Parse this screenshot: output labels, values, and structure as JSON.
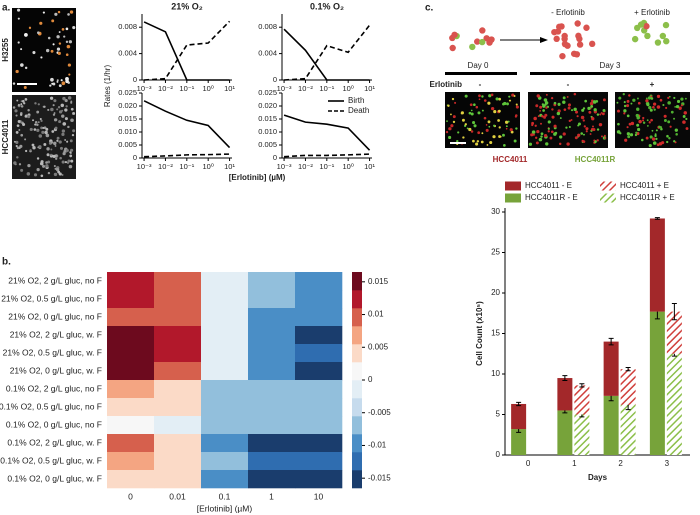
{
  "panel_labels": [
    "a.",
    "b.",
    "c."
  ],
  "panel_a": {
    "row_labels": [
      "H3255",
      "HCC4011"
    ],
    "ylabel": "Rates (1/hr)",
    "xlabel": "[Erlotinib] (µM)"
  },
  "schematic": {
    "day0": "Day 0",
    "day3": "Day 3",
    "minus_label": "- Erlotinib",
    "plus_label": "+ Erlotinib",
    "treatment": "Erlotinib",
    "signs": [
      "-",
      "-",
      "+"
    ],
    "cell_lines": [
      {
        "name": "HCC4011",
        "color": "#a3282a"
      },
      {
        "name": "HCC4011R",
        "color": "#77a33a"
      }
    ]
  },
  "chart_data": [
    {
      "type": "line",
      "title": "21% O₂",
      "xlog": true,
      "x": [
        0.001,
        0.01,
        0.1,
        1,
        10
      ],
      "xlim": [
        0.0008,
        13
      ],
      "xticks": [
        {
          "value": 0.001,
          "label": "10⁻³"
        },
        {
          "value": 0.01,
          "label": "10⁻²"
        },
        {
          "value": 0.1,
          "label": "10⁻¹"
        },
        {
          "value": 1,
          "label": "10⁰"
        },
        {
          "value": 10,
          "label": "10¹"
        }
      ],
      "ylim": [
        0,
        0.01
      ],
      "yticks": [
        0,
        0.004,
        0.008
      ],
      "series": [
        {
          "color": "#000000",
          "dash": false,
          "values": [
            0.0088,
            0.0073,
            0.0,
            0.0,
            0.0
          ]
        },
        {
          "color": "#000000",
          "dash": true,
          "values": [
            0.0,
            0.0002,
            0.0053,
            0.0056,
            0.0089
          ]
        }
      ]
    },
    {
      "type": "line",
      "title": "0.1% O₂",
      "xlog": true,
      "x": [
        0.001,
        0.01,
        0.1,
        1,
        10
      ],
      "xlim": [
        0.0008,
        13
      ],
      "xticks": [
        {
          "value": 0.001,
          "label": "10⁻³"
        },
        {
          "value": 0.01,
          "label": "10⁻²"
        },
        {
          "value": 0.1,
          "label": "10⁻¹"
        },
        {
          "value": 1,
          "label": "10⁰"
        },
        {
          "value": 10,
          "label": "10¹"
        }
      ],
      "ylim": [
        0,
        0.01
      ],
      "yticks": [
        0,
        0.004,
        0.008
      ],
      "series": [
        {
          "color": "#000000",
          "dash": false,
          "values": [
            0.0077,
            0.0045,
            0.0,
            0.0,
            0.0
          ]
        },
        {
          "color": "#000000",
          "dash": true,
          "values": [
            0.0,
            0.0002,
            0.0052,
            0.0042,
            0.0083
          ]
        }
      ]
    },
    {
      "type": "line",
      "xlog": true,
      "x": [
        0.001,
        0.01,
        0.1,
        1,
        10
      ],
      "xlim": [
        0.0008,
        13
      ],
      "xticks": [
        {
          "value": 0.001,
          "label": "10⁻³"
        },
        {
          "value": 0.01,
          "label": "10⁻²"
        },
        {
          "value": 0.1,
          "label": "10⁻¹"
        },
        {
          "value": 1,
          "label": "10⁰"
        },
        {
          "value": 10,
          "label": "10¹"
        }
      ],
      "ylim": [
        0,
        0.025
      ],
      "yticks": [
        0,
        0.005,
        {
          "value": 0.01,
          "label": "0.010"
        },
        0.015,
        {
          "value": 0.02,
          "label": "0.020"
        },
        0.025
      ],
      "series": [
        {
          "color": "#000000",
          "dash": false,
          "values": [
            0.022,
            0.018,
            0.0145,
            0.0125,
            0.004
          ]
        },
        {
          "color": "#000000",
          "dash": true,
          "values": [
            0.0005,
            0.0008,
            0.0012,
            0.0013,
            0.0015
          ]
        }
      ]
    },
    {
      "type": "line",
      "xlog": true,
      "x": [
        0.001,
        0.01,
        0.1,
        1,
        10
      ],
      "xlim": [
        0.0008,
        13
      ],
      "xticks": [
        {
          "value": 0.001,
          "label": "10⁻³"
        },
        {
          "value": 0.01,
          "label": "10⁻²"
        },
        {
          "value": 0.1,
          "label": "10⁻¹"
        },
        {
          "value": 1,
          "label": "10⁰"
        },
        {
          "value": 10,
          "label": "10¹"
        }
      ],
      "ylim": [
        0,
        0.025
      ],
      "yticks": [
        0,
        0.005,
        {
          "value": 0.01,
          "label": "0.010"
        },
        0.015,
        {
          "value": 0.02,
          "label": "0.020"
        },
        0.025
      ],
      "legend": "upper right",
      "series": [
        {
          "name": "Birth",
          "color": "#000000",
          "dash": false,
          "values": [
            0.0165,
            0.0138,
            0.013,
            0.0115,
            0.003
          ]
        },
        {
          "name": "Death",
          "color": "#000000",
          "dash": true,
          "values": [
            0.0005,
            0.001,
            0.001,
            0.0012,
            0.0015
          ]
        }
      ]
    },
    {
      "type": "heatmap",
      "xlabel": "[Erlotinib] (µM)",
      "categories": [
        "0",
        "0.01",
        "0.1",
        "1",
        "10"
      ],
      "rows": [
        "21% O2, 2 g/L gluc, no F",
        "21% O2, 0.5 g/L gluc, no F",
        "21% O2, 0 g/L gluc, no F",
        "21% O2, 2 g/L gluc, w. F",
        "21% O2, 0.5 g/L gluc, w. F",
        "21% O2, 0 g/L gluc, w. F",
        "0.1% O2, 2 g/L gluc, no F",
        "0.1% O2, 0.5 g/L gluc, no F",
        "0.1% O2, 0 g/L gluc, no F",
        "0.1% O2, 2 g/L gluc, w. F",
        "0.1% O2, 0.5 g/L gluc, w. F",
        "0.1% O2, 0 g/L gluc, w. F"
      ],
      "values": [
        [
          0.0115,
          0.0085,
          -0.002,
          -0.007,
          -0.009
        ],
        [
          0.0115,
          0.0085,
          -0.002,
          -0.007,
          -0.009
        ],
        [
          0.009,
          0.009,
          -0.002,
          -0.009,
          -0.009
        ],
        [
          0.016,
          0.013,
          -0.002,
          -0.009,
          -0.015
        ],
        [
          0.016,
          0.013,
          -0.002,
          -0.009,
          -0.012
        ],
        [
          0.016,
          0.009,
          -0.002,
          -0.009,
          -0.015
        ],
        [
          0.007,
          0.004,
          -0.006,
          -0.006,
          -0.006
        ],
        [
          0.004,
          0.004,
          -0.006,
          -0.006,
          -0.006
        ],
        [
          0.001,
          -0.001,
          -0.006,
          -0.006,
          -0.006
        ],
        [
          0.009,
          0.004,
          -0.009,
          -0.015,
          -0.015
        ],
        [
          0.007,
          0.004,
          -0.007,
          -0.012,
          -0.012
        ],
        [
          0.004,
          0.004,
          -0.009,
          -0.015,
          -0.015
        ]
      ],
      "zlim": [
        -0.0165,
        0.0165
      ],
      "colors": [
        "#1a3d6d",
        "#2f6db0",
        "#4a8ec6",
        "#92bfdc",
        "#c6dbed",
        "#e3eef5",
        "#f7f7f7",
        "#fbdac7",
        "#f4a582",
        "#d6604d",
        "#b2182b",
        "#6d0a1e"
      ],
      "zticks": [
        0.015,
        0.01,
        0.005,
        0,
        -0.005,
        -0.01,
        -0.015
      ]
    },
    {
      "type": "bar",
      "ylabel": "Cell Count (x10⁵)",
      "xlabel": "Days",
      "categories": [
        "0",
        "1",
        "2",
        "3"
      ],
      "ylim": [
        0,
        30
      ],
      "yticks": [
        0,
        5,
        10,
        15,
        20,
        25,
        30
      ],
      "series": [
        {
          "name": "HCC4011 - E",
          "color": "#a3282a",
          "hatch": false,
          "stack": 0,
          "values": [
            3.1,
            4.0,
            6.7,
            11.5
          ],
          "errors": [
            0.2,
            0.3,
            0.4,
            0.1
          ]
        },
        {
          "name": "HCC4011 + E",
          "color": "#d0403c",
          "hatch": true,
          "stack": 1,
          "values": [
            null,
            3.6,
            4.4,
            5.2
          ],
          "errors": [
            null,
            0.2,
            0.2,
            1.0
          ]
        },
        {
          "name": "HCC4011R - E",
          "color": "#77a33a",
          "hatch": false,
          "stack": 0,
          "values": [
            3.2,
            5.5,
            7.3,
            17.7
          ],
          "errors": [
            0.4,
            0.3,
            0.6,
            0.9
          ]
        },
        {
          "name": "HCC4011R + E",
          "color": "#8cbf4a",
          "hatch": true,
          "stack": 1,
          "values": [
            null,
            5.0,
            6.2,
            12.5
          ],
          "errors": [
            null,
            0.3,
            0.6,
            0.3
          ]
        }
      ]
    }
  ]
}
